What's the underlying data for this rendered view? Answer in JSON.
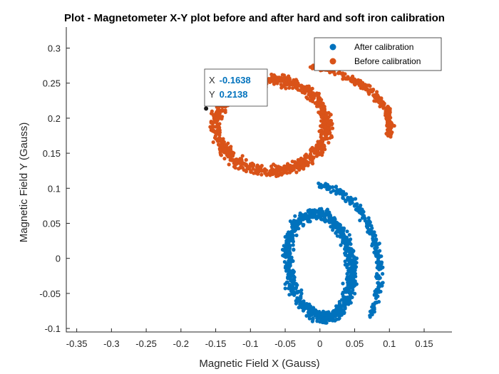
{
  "chart_data": {
    "type": "scatter",
    "title": "Plot - Magnetometer X-Y plot before and after hard and soft iron calibration",
    "xlabel": "Magnetic Field X (Gauss)",
    "ylabel": "Magnetic Field Y (Gauss)",
    "xlim": [
      -0.365,
      0.19
    ],
    "ylim": [
      -0.105,
      0.33
    ],
    "xticks": [
      "-0.35",
      "-0.3",
      "-0.25",
      "-0.2",
      "-0.15",
      "-0.1",
      "-0.05",
      "0",
      "0.05",
      "0.1",
      "0.15"
    ],
    "yticks": [
      "-0.1",
      "-0.05",
      "0",
      "0.05",
      "0.1",
      "0.15",
      "0.2",
      "0.25",
      "0.3"
    ],
    "grid": false,
    "legend_position": "top-right",
    "series": [
      {
        "name": "After calibration",
        "color": "#0072BD",
        "center": [
          0.0,
          -0.01
        ],
        "radius_x": 0.045,
        "radius_y": 0.075,
        "rotation_deg": 8,
        "outer_arc_radius_x": 0.085,
        "outer_arc_radius_y": 0.115,
        "outer_arc_angle_range_deg": [
          -45,
          80
        ]
      },
      {
        "name": "Before calibration",
        "color": "#D95319",
        "center": [
          -0.07,
          0.19
        ],
        "radius_x": 0.08,
        "radius_y": 0.065,
        "rotation_deg": 0,
        "outer_arc_radius_x": 0.17,
        "outer_arc_radius_y": 0.09,
        "outer_arc_angle_range_deg": [
          -10,
          70
        ]
      }
    ],
    "datatip": {
      "x_label": "X",
      "x_value": "-0.1638",
      "y_label": "Y",
      "y_value": "0.2138",
      "point": [
        -0.1638,
        0.2138
      ]
    }
  }
}
